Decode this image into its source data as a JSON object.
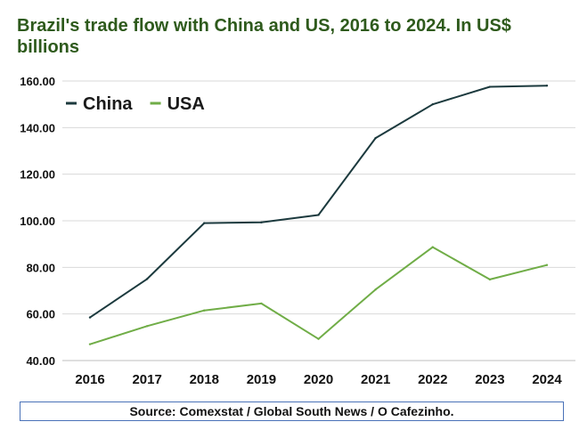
{
  "chart_data": {
    "type": "line",
    "title": "Brazil's trade flow with China and US, 2016 to 2024. In US$ billions",
    "x": [
      "2016",
      "2017",
      "2018",
      "2019",
      "2020",
      "2021",
      "2022",
      "2023",
      "2024"
    ],
    "series": [
      {
        "name": "China",
        "color": "#1c3a3e",
        "values": [
          58.5,
          75.0,
          99.0,
          99.3,
          102.5,
          135.5,
          150.0,
          157.5,
          158.0
        ]
      },
      {
        "name": "USA",
        "color": "#70ad47",
        "values": [
          47.0,
          54.8,
          61.5,
          64.5,
          49.3,
          70.5,
          88.7,
          74.8,
          81.0
        ]
      }
    ],
    "ylim": [
      40,
      160
    ],
    "yticks": [
      "40.00",
      "60.00",
      "80.00",
      "100.00",
      "120.00",
      "140.00",
      "160.00"
    ],
    "grid": true,
    "legend_position": "top-left",
    "xlabel": "",
    "ylabel": ""
  },
  "source": "Source: Comexstat / Global South News / O Cafezinho."
}
